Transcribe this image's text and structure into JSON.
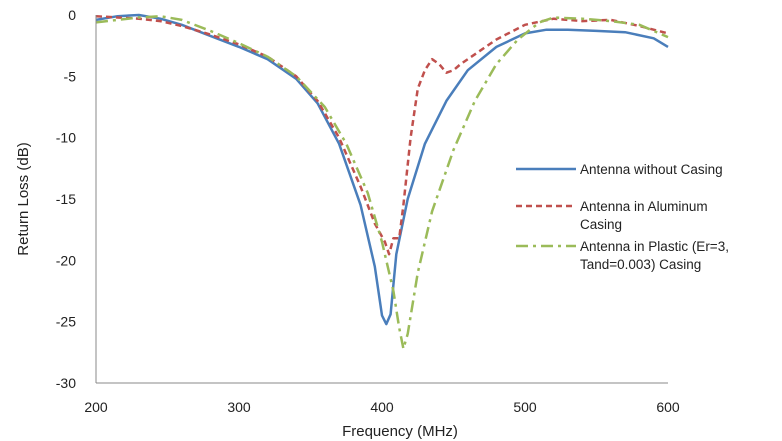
{
  "chart_data": {
    "type": "line",
    "title": "",
    "xlabel": "Frequency (MHz)",
    "ylabel": "Return Loss (dB)",
    "xlim": [
      200,
      600
    ],
    "ylim": [
      -30,
      0
    ],
    "x_ticks": [
      "200",
      "300",
      "400",
      "500",
      "600"
    ],
    "y_ticks": [
      "0",
      "-5",
      "-10",
      "-15",
      "-20",
      "-25",
      "-30"
    ],
    "grid": false,
    "legend_position": "right",
    "series": [
      {
        "name": "Antenna without Casing",
        "legend_lines": [
          "Antenna without Casing"
        ],
        "color": "#4a7ebb",
        "style": "solid",
        "points": [
          [
            200,
            -0.4
          ],
          [
            215,
            -0.1
          ],
          [
            230,
            0
          ],
          [
            245,
            -0.3
          ],
          [
            260,
            -0.8
          ],
          [
            280,
            -1.7
          ],
          [
            300,
            -2.6
          ],
          [
            320,
            -3.6
          ],
          [
            340,
            -5.2
          ],
          [
            355,
            -7.2
          ],
          [
            370,
            -10.5
          ],
          [
            385,
            -15.5
          ],
          [
            395,
            -20.5
          ],
          [
            400,
            -24.5
          ],
          [
            403,
            -25.2
          ],
          [
            406,
            -24.4
          ],
          [
            410,
            -19.5
          ],
          [
            418,
            -15
          ],
          [
            430,
            -10.5
          ],
          [
            445,
            -7
          ],
          [
            460,
            -4.5
          ],
          [
            480,
            -2.6
          ],
          [
            500,
            -1.5
          ],
          [
            515,
            -1.2
          ],
          [
            530,
            -1.2
          ],
          [
            550,
            -1.3
          ],
          [
            570,
            -1.4
          ],
          [
            590,
            -1.9
          ],
          [
            600,
            -2.6
          ]
        ]
      },
      {
        "name": "Antenna in Aluminum Casing",
        "legend_lines": [
          "Antenna in Aluminum",
          "Casing"
        ],
        "color": "#c0504d",
        "style": "dashed",
        "points": [
          [
            200,
            -0.1
          ],
          [
            215,
            -0.2
          ],
          [
            230,
            -0.3
          ],
          [
            245,
            -0.5
          ],
          [
            260,
            -0.9
          ],
          [
            280,
            -1.6
          ],
          [
            300,
            -2.4
          ],
          [
            320,
            -3.4
          ],
          [
            340,
            -5
          ],
          [
            355,
            -7
          ],
          [
            370,
            -10
          ],
          [
            385,
            -14
          ],
          [
            395,
            -17
          ],
          [
            402,
            -18.5
          ],
          [
            405,
            -19.5
          ],
          [
            408,
            -18.2
          ],
          [
            412,
            -18.2
          ],
          [
            415,
            -15.5
          ],
          [
            420,
            -10
          ],
          [
            425,
            -6
          ],
          [
            430,
            -4.5
          ],
          [
            435,
            -3.6
          ],
          [
            440,
            -4
          ],
          [
            445,
            -4.7
          ],
          [
            450,
            -4.5
          ],
          [
            455,
            -4
          ],
          [
            465,
            -3.2
          ],
          [
            480,
            -2
          ],
          [
            500,
            -0.8
          ],
          [
            520,
            -0.3
          ],
          [
            540,
            -0.5
          ],
          [
            560,
            -0.4
          ],
          [
            580,
            -0.9
          ],
          [
            600,
            -1.5
          ]
        ]
      },
      {
        "name": "Antenna in Plastic (Er=3, Tand=0.003)  Casing",
        "legend_lines": [
          "Antenna in Plastic (Er=3,",
          "Tand=0.003)  Casing"
        ],
        "color": "#9bbb59",
        "style": "dashdot",
        "points": [
          [
            200,
            -0.6
          ],
          [
            215,
            -0.4
          ],
          [
            230,
            -0.2
          ],
          [
            245,
            -0.1
          ],
          [
            260,
            -0.4
          ],
          [
            280,
            -1.3
          ],
          [
            300,
            -2.3
          ],
          [
            320,
            -3.4
          ],
          [
            340,
            -5
          ],
          [
            360,
            -7.5
          ],
          [
            375,
            -10.5
          ],
          [
            390,
            -14.5
          ],
          [
            400,
            -18.5
          ],
          [
            408,
            -22.5
          ],
          [
            412,
            -25.5
          ],
          [
            415,
            -27.2
          ],
          [
            418,
            -26
          ],
          [
            425,
            -21
          ],
          [
            435,
            -16
          ],
          [
            450,
            -11
          ],
          [
            465,
            -7
          ],
          [
            480,
            -4
          ],
          [
            495,
            -2
          ],
          [
            510,
            -0.6
          ],
          [
            520,
            -0.2
          ],
          [
            540,
            -0.3
          ],
          [
            560,
            -0.5
          ],
          [
            580,
            -0.8
          ],
          [
            600,
            -1.8
          ]
        ]
      }
    ]
  }
}
